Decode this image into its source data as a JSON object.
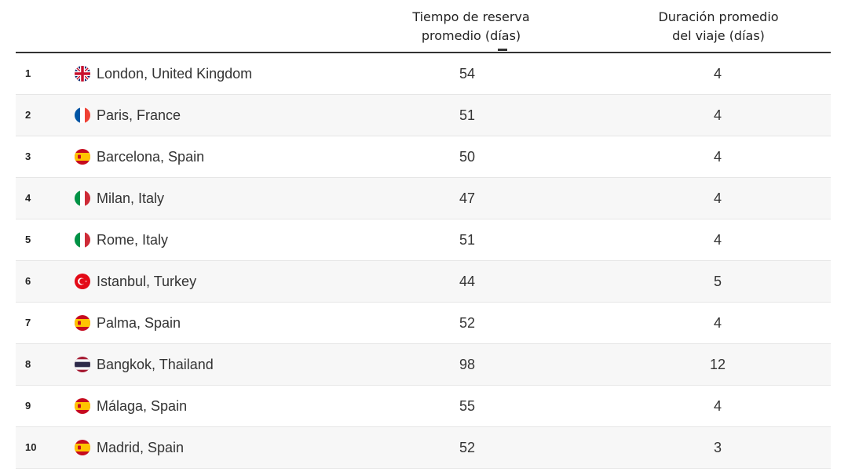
{
  "table": {
    "columns": {
      "rank": "",
      "destination": "",
      "booking_line1": "Tiempo de reserva",
      "booking_line2": "promedio (días)",
      "duration_line1": "Duración promedio",
      "duration_line2": "del viaje (días)"
    },
    "rows": [
      {
        "rank": "1",
        "city": "London, United Kingdom",
        "flag": "uk-flag-icon",
        "booking": "54",
        "duration": "4"
      },
      {
        "rank": "2",
        "city": "Paris, France",
        "flag": "france-flag-icon",
        "booking": "51",
        "duration": "4"
      },
      {
        "rank": "3",
        "city": "Barcelona, Spain",
        "flag": "spain-flag-icon",
        "booking": "50",
        "duration": "4"
      },
      {
        "rank": "4",
        "city": "Milan, Italy",
        "flag": "italy-flag-icon",
        "booking": "47",
        "duration": "4"
      },
      {
        "rank": "5",
        "city": "Rome, Italy",
        "flag": "italy-flag-icon",
        "booking": "51",
        "duration": "4"
      },
      {
        "rank": "6",
        "city": "Istanbul, Turkey",
        "flag": "turkey-flag-icon",
        "booking": "44",
        "duration": "5"
      },
      {
        "rank": "7",
        "city": "Palma, Spain",
        "flag": "spain-flag-icon",
        "booking": "52",
        "duration": "4"
      },
      {
        "rank": "8",
        "city": "Bangkok, Thailand",
        "flag": "thailand-flag-icon",
        "booking": "98",
        "duration": "12"
      },
      {
        "rank": "9",
        "city": "Málaga, Spain",
        "flag": "spain-flag-icon",
        "booking": "55",
        "duration": "4"
      },
      {
        "rank": "10",
        "city": "Madrid, Spain",
        "flag": "spain-flag-icon",
        "booking": "52",
        "duration": "3"
      }
    ]
  },
  "colors": {
    "text": "#333333",
    "row_alt_bg": "#f7f7f7",
    "header_rule": "#333333"
  }
}
